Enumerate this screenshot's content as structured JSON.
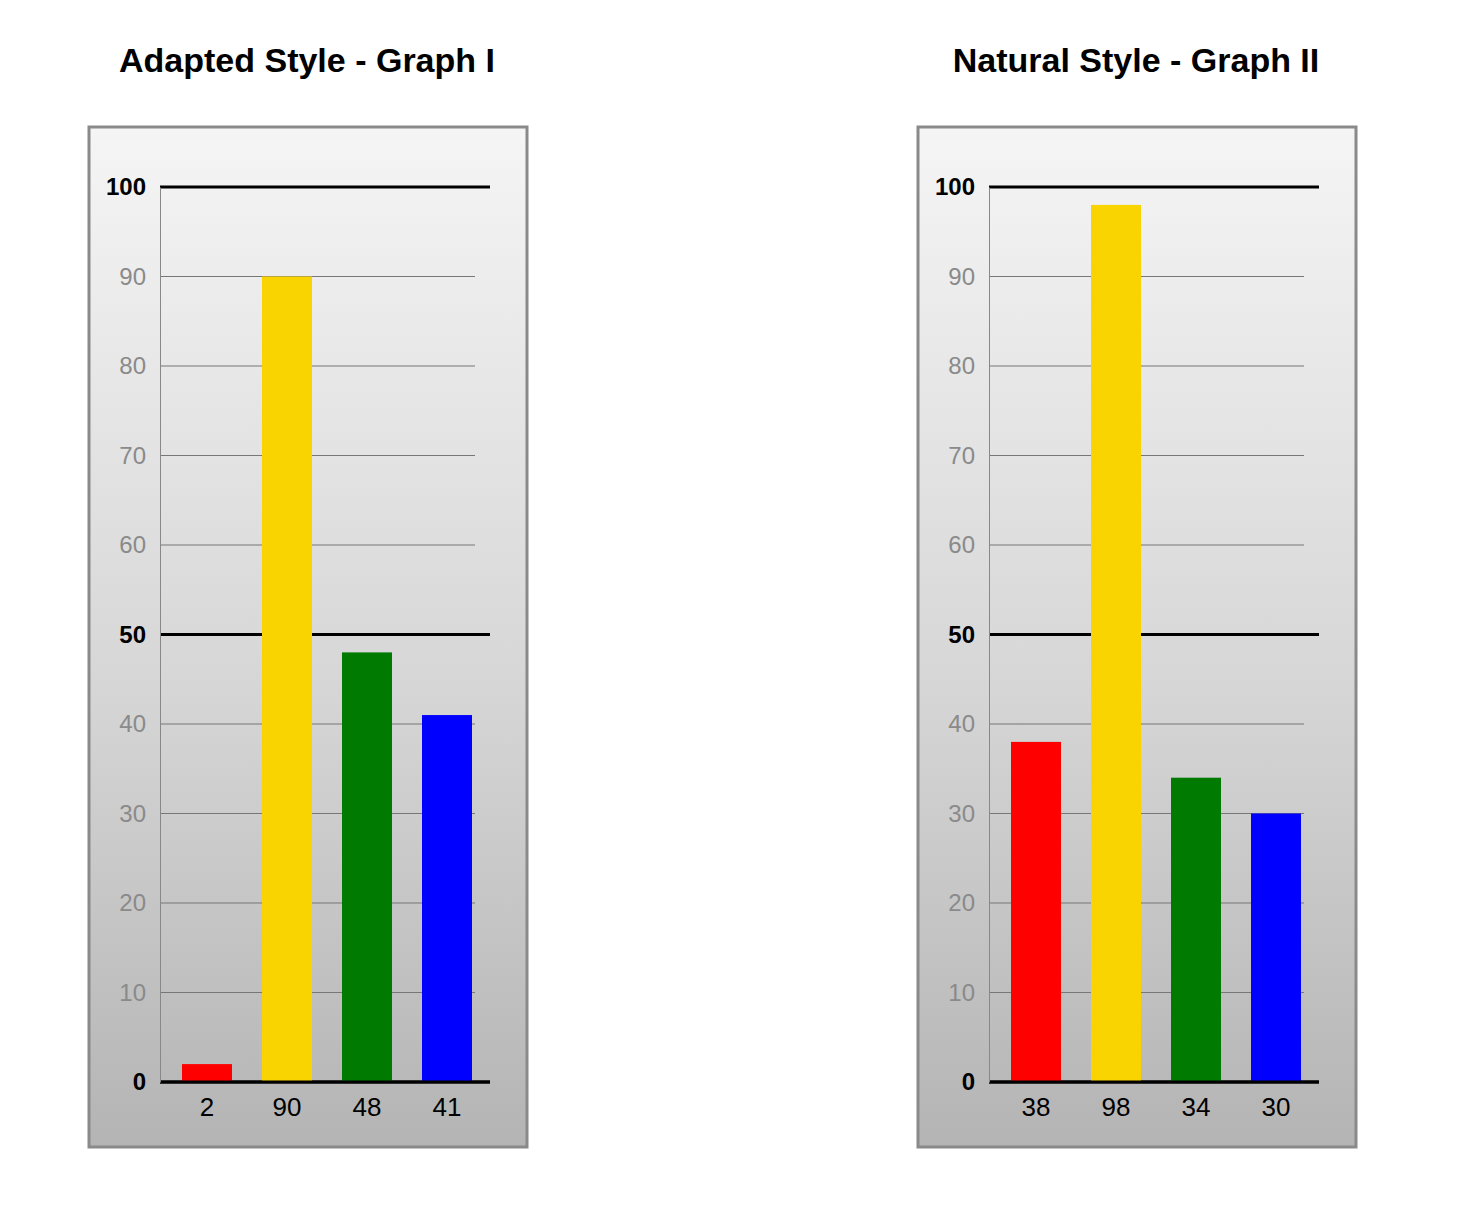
{
  "chart_data": [
    {
      "type": "bar",
      "title": "Adapted Style - Graph I",
      "categories": [
        null,
        null,
        null,
        null
      ],
      "values": [
        2,
        90,
        48,
        41
      ],
      "colors": [
        "#ff0000",
        "#fad400",
        "#007a00",
        "#0000ff"
      ],
      "ylim": [
        0,
        100
      ],
      "yticks": [
        0,
        10,
        20,
        30,
        40,
        50,
        60,
        70,
        80,
        90,
        100
      ],
      "grid": true,
      "data_labels": true,
      "tick_labels": "y"
    },
    {
      "type": "bar",
      "title": "Natural Style - Graph II",
      "categories": [
        null,
        null,
        null,
        null
      ],
      "values": [
        38,
        98,
        34,
        30
      ],
      "colors": [
        "#ff0000",
        "#fad400",
        "#007a00",
        "#0000ff"
      ],
      "ylim": [
        0,
        100
      ],
      "yticks": [
        0,
        10,
        20,
        30,
        40,
        50,
        60,
        70,
        80,
        90,
        100
      ],
      "grid": true,
      "data_labels": true,
      "tick_labels": "y"
    }
  ]
}
